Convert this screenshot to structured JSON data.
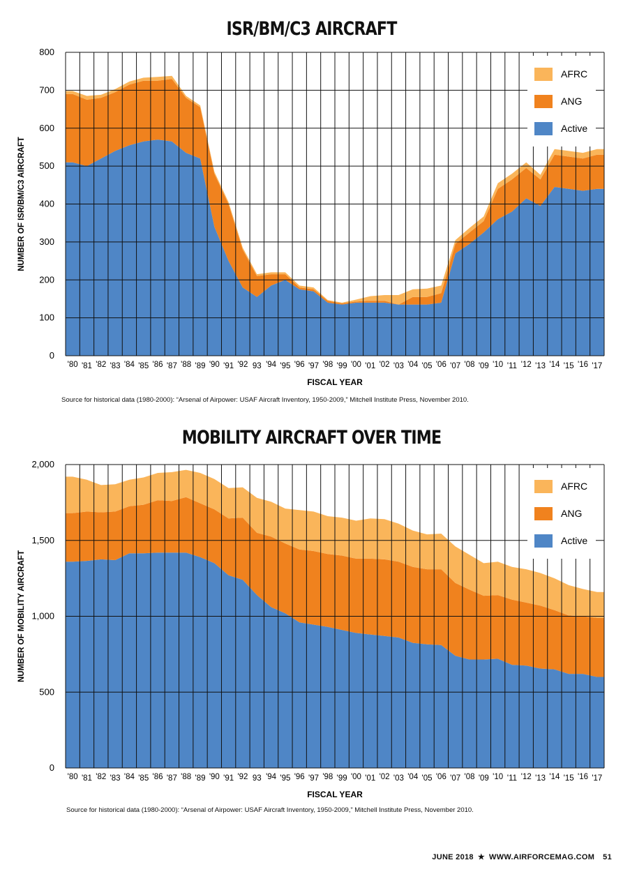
{
  "charts": [
    {
      "title": "ISR/BM/C3 AIRCRAFT",
      "source": "Source for historical data (1980-2000): “Arsenal of Airpower: USAF Aircraft Inventory, 1950-2009,” Mitchell Institute Press, November 2010."
    },
    {
      "title": "MOBILITY AIRCRAFT OVER TIME",
      "source": "Source for historical data (1980-2000): “Arsenal of Airpower: USAF Aircraft Inventory, 1950-2009,” Mitchell Institute Press, November 2010."
    }
  ],
  "footer": {
    "issue": "JUNE 2018",
    "separator": "★",
    "site": "WWW.AIRFORCEMAG.COM",
    "page": "51"
  },
  "colors": {
    "active": "#4f86c6",
    "ang": "#f0821e",
    "afrc": "#fab55a",
    "grid": "#111111"
  },
  "chart_data": [
    {
      "type": "area",
      "stacked": true,
      "title": "ISR/BM/C3 AIRCRAFT",
      "xlabel": "FISCAL YEAR",
      "ylabel": "NUMBER OF ISR/BM/C3 AIRCRAFT",
      "ylim": [
        0,
        800
      ],
      "yticks": [
        0,
        100,
        200,
        300,
        400,
        500,
        600,
        700,
        800
      ],
      "ytick_labels": [
        "0",
        "100",
        "200",
        "300",
        "400",
        "500",
        "600",
        "700",
        "800"
      ],
      "grid": true,
      "legend_position": "top-right",
      "x_tick_labels": [
        "'80",
        "'81",
        "'82",
        "'83",
        "'84",
        "'85",
        "'86",
        "'87",
        "'88",
        "'89",
        "'90",
        "'91",
        "'92",
        "93",
        "'94",
        "'95",
        "'96",
        "'97",
        "'98",
        "'99",
        "'00",
        "'01",
        "'02",
        "'03",
        "'04",
        "'05",
        "'06",
        "'07",
        "'08",
        "'09",
        "'10",
        "'11",
        "'12",
        "'13",
        "'14",
        "'15",
        "'16",
        "'17"
      ],
      "series": [
        {
          "name": "Active",
          "color": "#4f86c6",
          "values": [
            510,
            500,
            520,
            540,
            555,
            565,
            570,
            565,
            535,
            520,
            340,
            250,
            180,
            155,
            185,
            200,
            175,
            170,
            140,
            135,
            140,
            140,
            140,
            135,
            135,
            135,
            140,
            270,
            295,
            325,
            360,
            380,
            415,
            395,
            445,
            440,
            435,
            440
          ]
        },
        {
          "name": "ANG",
          "color": "#f0821e",
          "values": [
            180,
            175,
            160,
            155,
            160,
            160,
            155,
            165,
            145,
            135,
            140,
            150,
            100,
            55,
            30,
            15,
            5,
            5,
            5,
            3,
            3,
            5,
            5,
            0,
            20,
            20,
            25,
            25,
            30,
            30,
            80,
            85,
            80,
            70,
            85,
            85,
            85,
            90
          ]
        },
        {
          "name": "AFRC",
          "color": "#fab55a",
          "values": [
            8,
            10,
            8,
            8,
            8,
            8,
            10,
            8,
            5,
            5,
            5,
            5,
            5,
            5,
            5,
            5,
            5,
            5,
            2,
            2,
            5,
            12,
            15,
            25,
            20,
            22,
            20,
            10,
            12,
            12,
            15,
            15,
            15,
            12,
            15,
            15,
            15,
            15
          ]
        }
      ]
    },
    {
      "type": "area",
      "stacked": true,
      "title": "MOBILITY AIRCRAFT OVER TIME",
      "xlabel": "FISCAL YEAR",
      "ylabel": "NUMBER OF MOBILITY AIRCRAFT",
      "ylim": [
        0,
        2000
      ],
      "yticks": [
        0,
        500,
        1000,
        1500,
        2000
      ],
      "ytick_labels": [
        "0",
        "500",
        "1,000",
        "1,500",
        "2,000"
      ],
      "grid": true,
      "legend_position": "top-right",
      "x_tick_labels": [
        "'80",
        "'81",
        "'82",
        "'83",
        "'84",
        "'85",
        "'86",
        "'87",
        "'88",
        "'89",
        "'90",
        "'91",
        "'92",
        "93",
        "'94",
        "'95",
        "'96",
        "'97",
        "'98",
        "'99",
        "'00",
        "'01",
        "'02",
        "'03",
        "'04",
        "'05",
        "'06",
        "'07",
        "'08",
        "'09",
        "'10",
        "'11",
        "'12",
        "'13",
        "'14",
        "'15",
        "'16",
        "'17"
      ],
      "series": [
        {
          "name": "Active",
          "color": "#4f86c6",
          "values": [
            1360,
            1365,
            1375,
            1370,
            1415,
            1415,
            1420,
            1420,
            1420,
            1390,
            1350,
            1270,
            1240,
            1140,
            1060,
            1020,
            960,
            945,
            930,
            910,
            890,
            880,
            870,
            860,
            825,
            815,
            810,
            740,
            715,
            715,
            720,
            680,
            675,
            655,
            650,
            620,
            620,
            600
          ]
        },
        {
          "name": "ANG",
          "color": "#f0821e",
          "values": [
            320,
            325,
            310,
            320,
            310,
            320,
            345,
            340,
            365,
            355,
            355,
            375,
            410,
            410,
            465,
            460,
            480,
            485,
            480,
            490,
            490,
            500,
            505,
            500,
            500,
            495,
            500,
            480,
            460,
            420,
            420,
            430,
            415,
            415,
            390,
            385,
            380,
            390
          ]
        },
        {
          "name": "AFRC",
          "color": "#fab55a",
          "values": [
            240,
            210,
            180,
            180,
            175,
            180,
            180,
            190,
            180,
            200,
            200,
            200,
            200,
            230,
            230,
            230,
            260,
            260,
            250,
            250,
            250,
            265,
            265,
            250,
            240,
            230,
            235,
            240,
            230,
            215,
            220,
            215,
            220,
            215,
            210,
            200,
            180,
            170
          ]
        }
      ]
    }
  ]
}
